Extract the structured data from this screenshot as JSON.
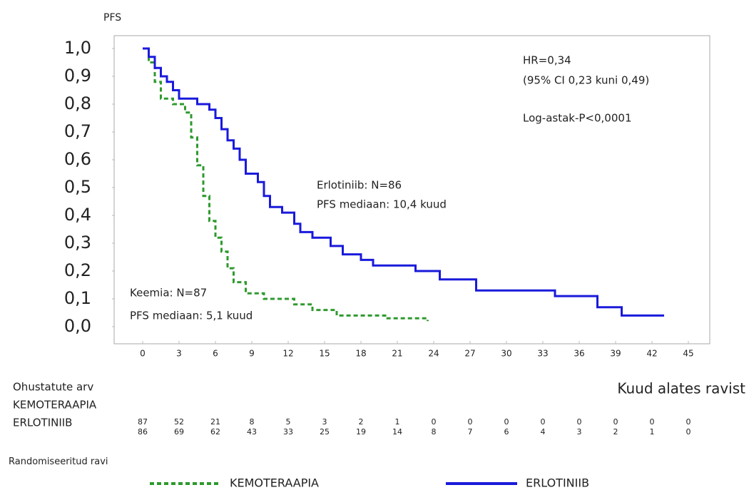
{
  "chart_data": {
    "type": "step",
    "y_label": "PFS",
    "x_label": "Kuud alates ravist",
    "xlim": [
      -1,
      46
    ],
    "ylim": [
      -0.03,
      1.03
    ],
    "xticks": [
      0,
      3,
      6,
      9,
      12,
      15,
      18,
      21,
      24,
      27,
      30,
      33,
      36,
      39,
      42,
      45
    ],
    "yticks": [
      {
        "value": 0,
        "label": "0,0"
      },
      {
        "value": 0.1,
        "label": "0,1"
      },
      {
        "value": 0.2,
        "label": "0,2"
      },
      {
        "value": 0.3,
        "label": "0,3"
      },
      {
        "value": 0.4,
        "label": "0,4"
      },
      {
        "value": 0.5,
        "label": "0,5"
      },
      {
        "value": 0.6,
        "label": "0,6"
      },
      {
        "value": 0.7,
        "label": "0,7"
      },
      {
        "value": 0.8,
        "label": "0,8"
      },
      {
        "value": 0.9,
        "label": "0,9"
      },
      {
        "value": 1,
        "label": "1,0"
      }
    ],
    "series": [
      {
        "name": "KEMOTERAAPIA",
        "color": "#2e9a2e",
        "dashed": true,
        "x": [
          0,
          0.5,
          0.5,
          1,
          1,
          1.5,
          1.5,
          2.5,
          2.5,
          3.5,
          3.5,
          4,
          4,
          4.5,
          4.5,
          5,
          5,
          5.5,
          5.5,
          6,
          6,
          6.5,
          6.5,
          7,
          7,
          7.5,
          7.5,
          8.5,
          8.5,
          10,
          10,
          12.5,
          12.5,
          14,
          14,
          16,
          16,
          20,
          20,
          23.5,
          23.5
        ],
        "values": [
          1,
          1,
          0.95,
          0.95,
          0.88,
          0.88,
          0.82,
          0.82,
          0.8,
          0.8,
          0.77,
          0.77,
          0.68,
          0.68,
          0.58,
          0.58,
          0.47,
          0.47,
          0.38,
          0.38,
          0.32,
          0.32,
          0.27,
          0.27,
          0.21,
          0.21,
          0.16,
          0.16,
          0.12,
          0.12,
          0.1,
          0.1,
          0.08,
          0.08,
          0.06,
          0.06,
          0.04,
          0.04,
          0.03,
          0.03,
          0.02
        ]
      },
      {
        "name": "ERLOTINIIB",
        "color": "#1a1adb",
        "dashed": false,
        "x": [
          0,
          0.5,
          0.5,
          1,
          1,
          1.5,
          1.5,
          2,
          2,
          2.5,
          2.5,
          3,
          3,
          4.5,
          4.5,
          5.5,
          5.5,
          6,
          6,
          6.5,
          6.5,
          7,
          7,
          7.5,
          7.5,
          8,
          8,
          8.5,
          8.5,
          9.5,
          9.5,
          10,
          10,
          10.5,
          10.5,
          11.5,
          11.5,
          12.5,
          12.5,
          13,
          13,
          14,
          14,
          15.5,
          15.5,
          16.5,
          16.5,
          18,
          18,
          19,
          19,
          22.5,
          22.5,
          24.5,
          24.5,
          27.5,
          27.5,
          34,
          34,
          37.5,
          37.5,
          39.5,
          39.5,
          43
        ],
        "values": [
          1,
          1,
          0.97,
          0.97,
          0.93,
          0.93,
          0.9,
          0.9,
          0.88,
          0.88,
          0.85,
          0.85,
          0.82,
          0.82,
          0.8,
          0.8,
          0.78,
          0.78,
          0.75,
          0.75,
          0.71,
          0.71,
          0.67,
          0.67,
          0.64,
          0.64,
          0.6,
          0.6,
          0.55,
          0.55,
          0.52,
          0.52,
          0.47,
          0.47,
          0.43,
          0.43,
          0.41,
          0.41,
          0.37,
          0.37,
          0.34,
          0.34,
          0.32,
          0.32,
          0.29,
          0.29,
          0.26,
          0.26,
          0.24,
          0.24,
          0.22,
          0.22,
          0.2,
          0.2,
          0.17,
          0.17,
          0.13,
          0.13,
          0.11,
          0.11,
          0.07,
          0.07,
          0.04,
          0.04
        ]
      }
    ],
    "annotations": [
      "HR=0,34",
      "(95% CI 0,23 kuni 0,49)",
      "Log-astak-P<0,0001",
      "Erlotiniib: N=86",
      "PFS mediaan: 10,4 kuud",
      "Keemia: N=87",
      "PFS mediaan: 5,1 kuud"
    ],
    "risk_table": {
      "title": "Ohustatute arv",
      "rows": [
        {
          "name": "KEMOTERAAPIA",
          "values": [
            87,
            52,
            21,
            8,
            5,
            3,
            2,
            1,
            0,
            0,
            0,
            0,
            0,
            0,
            0,
            0
          ]
        },
        {
          "name": "ERLOTINIIB",
          "values": [
            86,
            69,
            62,
            43,
            33,
            25,
            19,
            14,
            8,
            7,
            6,
            4,
            3,
            2,
            1,
            0
          ]
        }
      ]
    },
    "legend_title": "Randomiseeritud ravi"
  }
}
